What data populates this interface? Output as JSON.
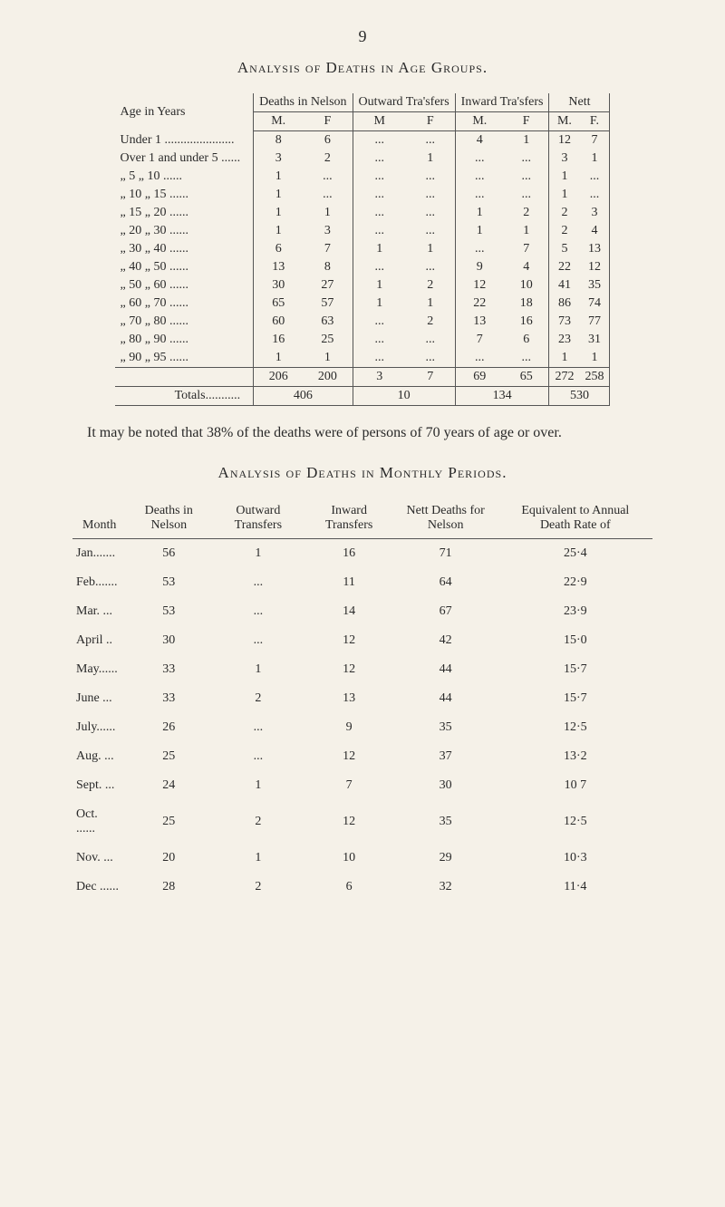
{
  "page_number": "9",
  "section1_title": "Analysis of Deaths in Age Groups.",
  "table1": {
    "col_age": "Age in Years",
    "col_deaths": "Deaths in Nelson",
    "col_outward": "Outward Tra'sfers",
    "col_inward": "Inward Tra'sfers",
    "col_nett": "Nett",
    "sub_m": "M.",
    "sub_f": "F",
    "sub_f_dot": "F.",
    "rows": [
      {
        "label": "Under 1 ......................",
        "dm": "8",
        "df": "6",
        "om": "...",
        "of": "...",
        "im": "4",
        "if": "1",
        "nm": "12",
        "nf": "7"
      },
      {
        "label": "Over 1 and under 5 ......",
        "dm": "3",
        "df": "2",
        "om": "...",
        "of": "1",
        "im": "...",
        "if": "...",
        "nm": "3",
        "nf": "1"
      },
      {
        "label": "„   5   „        10 ......",
        "dm": "1",
        "df": "...",
        "om": "...",
        "of": "...",
        "im": "...",
        "if": "...",
        "nm": "1",
        "nf": "..."
      },
      {
        "label": "„ 10   „        15 ......",
        "dm": "1",
        "df": "...",
        "om": "...",
        "of": "...",
        "im": "...",
        "if": "...",
        "nm": "1",
        "nf": "..."
      },
      {
        "label": "„ 15   „        20 ......",
        "dm": "1",
        "df": "1",
        "om": "...",
        "of": "...",
        "im": "1",
        "if": "2",
        "nm": "2",
        "nf": "3"
      },
      {
        "label": "„ 20   „        30 ......",
        "dm": "1",
        "df": "3",
        "om": "...",
        "of": "...",
        "im": "1",
        "if": "1",
        "nm": "2",
        "nf": "4"
      },
      {
        "label": "„ 30   „        40 ......",
        "dm": "6",
        "df": "7",
        "om": "1",
        "of": "1",
        "im": "...",
        "if": "7",
        "nm": "5",
        "nf": "13"
      },
      {
        "label": "„ 40   „        50 ......",
        "dm": "13",
        "df": "8",
        "om": "...",
        "of": "...",
        "im": "9",
        "if": "4",
        "nm": "22",
        "nf": "12"
      },
      {
        "label": "„ 50   „        60 ......",
        "dm": "30",
        "df": "27",
        "om": "1",
        "of": "2",
        "im": "12",
        "if": "10",
        "nm": "41",
        "nf": "35"
      },
      {
        "label": "„ 60   „        70 ......",
        "dm": "65",
        "df": "57",
        "om": "1",
        "of": "1",
        "im": "22",
        "if": "18",
        "nm": "86",
        "nf": "74"
      },
      {
        "label": "„ 70   „        80 ......",
        "dm": "60",
        "df": "63",
        "om": "...",
        "of": "2",
        "im": "13",
        "if": "16",
        "nm": "73",
        "nf": "77"
      },
      {
        "label": "„ 80   „        90 ......",
        "dm": "16",
        "df": "25",
        "om": "...",
        "of": "...",
        "im": "7",
        "if": "6",
        "nm": "23",
        "nf": "31"
      },
      {
        "label": "„ 90   „        95 ......",
        "dm": "1",
        "df": "1",
        "om": "...",
        "of": "...",
        "im": "...",
        "if": "...",
        "nm": "1",
        "nf": "1"
      }
    ],
    "subtotal": {
      "dm": "206",
      "df": "200",
      "om": "3",
      "of": "7",
      "im": "69",
      "if": "65",
      "nm": "272",
      "nf": "258"
    },
    "totals_label": "Totals...........",
    "totals": {
      "d": "406",
      "o": "10",
      "i": "134",
      "n": "530"
    }
  },
  "paragraph": "It may be noted that 38% of the deaths were of persons of 70 years of age or over.",
  "section2_title": "Analysis of Deaths in Monthly Periods.",
  "table2": {
    "col_month": "Month",
    "col_deaths": "Deaths in Nelson",
    "col_outward": "Outward Transfers",
    "col_inward": "Inward Transfers",
    "col_nett": "Nett Deaths for Nelson",
    "col_equiv": "Equivalent to Annual Death Rate of",
    "rows": [
      {
        "m": "Jan.......",
        "d": "56",
        "o": "1",
        "i": "16",
        "n": "71",
        "e": "25·4"
      },
      {
        "m": "Feb.......",
        "d": "53",
        "o": "...",
        "i": "11",
        "n": "64",
        "e": "22·9"
      },
      {
        "m": "Mar. ...",
        "d": "53",
        "o": "...",
        "i": "14",
        "n": "67",
        "e": "23·9"
      },
      {
        "m": "April ..",
        "d": "30",
        "o": "...",
        "i": "12",
        "n": "42",
        "e": "15·0"
      },
      {
        "m": "May......",
        "d": "33",
        "o": "1",
        "i": "12",
        "n": "44",
        "e": "15·7"
      },
      {
        "m": "June ...",
        "d": "33",
        "o": "2",
        "i": "13",
        "n": "44",
        "e": "15·7"
      },
      {
        "m": "July......",
        "d": "26",
        "o": "...",
        "i": "9",
        "n": "35",
        "e": "12·5"
      },
      {
        "m": "Aug. ...",
        "d": "25",
        "o": "...",
        "i": "12",
        "n": "37",
        "e": "13·2"
      },
      {
        "m": "Sept. ...",
        "d": "24",
        "o": "1",
        "i": "7",
        "n": "30",
        "e": "10 7"
      },
      {
        "m": "Oct. ......",
        "d": "25",
        "o": "2",
        "i": "12",
        "n": "35",
        "e": "12·5"
      },
      {
        "m": "Nov. ...",
        "d": "20",
        "o": "1",
        "i": "10",
        "n": "29",
        "e": "10·3"
      },
      {
        "m": "Dec ......",
        "d": "28",
        "o": "2",
        "i": "6",
        "n": "32",
        "e": "11·4"
      }
    ]
  }
}
